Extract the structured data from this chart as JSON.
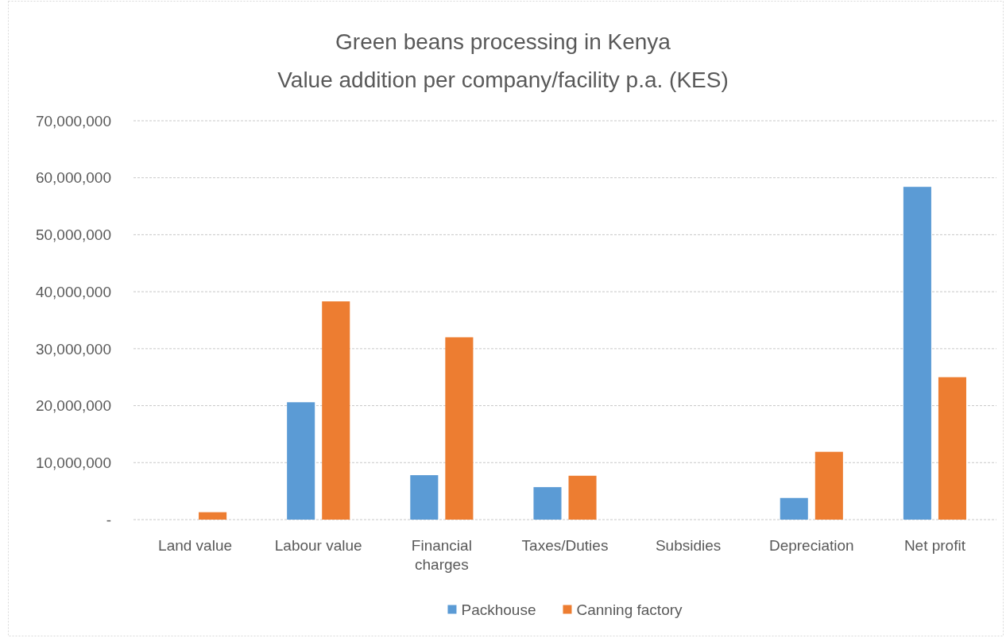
{
  "chart_data": {
    "type": "bar",
    "title": "Green beans processing in Kenya",
    "subtitle": "Value addition per company/facility p.a. (KES)",
    "categories": [
      "Land value",
      "Labour value",
      "Financial charges",
      "Taxes/Duties",
      "Subsidies",
      "Depreciation",
      "Net profit"
    ],
    "series": [
      {
        "name": "Packhouse",
        "color": "#5b9bd5",
        "values": [
          0,
          20600000,
          7800000,
          5700000,
          0,
          3800000,
          58400000
        ]
      },
      {
        "name": "Canning factory",
        "color": "#ed7d31",
        "values": [
          1300000,
          38300000,
          32000000,
          7700000,
          0,
          11900000,
          25000000
        ]
      }
    ],
    "ylim": [
      0,
      70000000
    ],
    "yticks": [
      {
        "value": 0,
        "label": "-"
      },
      {
        "value": 10000000,
        "label": "10,000,000"
      },
      {
        "value": 20000000,
        "label": "20,000,000"
      },
      {
        "value": 30000000,
        "label": "30,000,000"
      },
      {
        "value": 40000000,
        "label": "40,000,000"
      },
      {
        "value": 50000000,
        "label": "50,000,000"
      },
      {
        "value": 60000000,
        "label": "60,000,000"
      },
      {
        "value": 70000000,
        "label": "70,000,000"
      }
    ],
    "grid": "y",
    "legend": "bottom"
  }
}
